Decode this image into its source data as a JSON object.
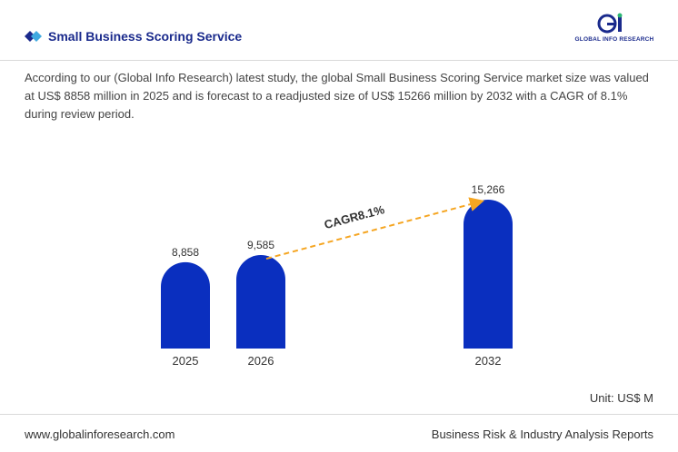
{
  "header": {
    "title": "Small Business Scoring Service",
    "logo_text": "GLOBAL INFO RESEARCH"
  },
  "description": "According to our (Global Info Research) latest study, the global Small Business Scoring Service market size was valued at US$ 8858 million in 2025 and is forecast to a readjusted size of US$ 15266 million by 2032 with a CAGR of 8.1% during review period.",
  "colors": {
    "bar": "#0a2fbf",
    "arrow": "#f5a623",
    "title": "#1a2a8c"
  },
  "chart_data": {
    "type": "bar",
    "categories": [
      "2025",
      "2026",
      "2032"
    ],
    "values": [
      8858,
      9585,
      15266
    ],
    "value_labels": [
      "8,858",
      "9,585",
      "15,266"
    ],
    "cagr_label": "CAGR8.1%",
    "grid": false
  },
  "unit_label": "Unit: US$ M",
  "footer": {
    "website": "www.globalinforesearch.com",
    "tagline": "Business Risk & Industry Analysis Reports"
  }
}
